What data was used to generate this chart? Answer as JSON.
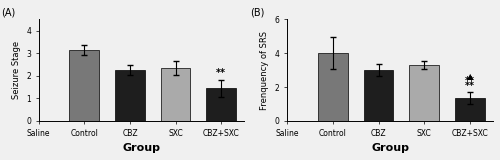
{
  "panel_A": {
    "title": "(A)",
    "categories": [
      "Saline",
      "Control",
      "CBZ",
      "SXC",
      "CBZ+SXC"
    ],
    "values": [
      0,
      3.15,
      2.25,
      2.35,
      1.45
    ],
    "errors": [
      0,
      0.22,
      0.22,
      0.3,
      0.38
    ],
    "bar_colors": [
      "white",
      "#787878",
      "#1e1e1e",
      "#aaaaaa",
      "#1e1e1e"
    ],
    "ylabel": "Seizure Stage",
    "xlabel": "Group",
    "ylim": [
      0,
      4.5
    ],
    "yticks": [
      0,
      1,
      2,
      3,
      4
    ],
    "annot_text": "**",
    "annot_idx": 4
  },
  "panel_B": {
    "title": "(B)",
    "categories": [
      "Saline",
      "Control",
      "CBZ",
      "SXC",
      "CBZ+SXC"
    ],
    "values": [
      0,
      4.0,
      3.0,
      3.3,
      1.35
    ],
    "errors": [
      0,
      0.95,
      0.35,
      0.25,
      0.38
    ],
    "bar_colors": [
      "white",
      "#787878",
      "#1e1e1e",
      "#aaaaaa",
      "#1e1e1e"
    ],
    "ylabel": "Frenquency of SRS",
    "xlabel": "Group",
    "ylim": [
      0,
      6
    ],
    "yticks": [
      0,
      2,
      4,
      6
    ],
    "annot_idx": 4
  },
  "background_color": "#f0f0f0",
  "fontsize_label": 6,
  "fontsize_tick": 5.5,
  "fontsize_title": 7,
  "fontsize_annot": 6,
  "fontsize_xlabel": 8
}
